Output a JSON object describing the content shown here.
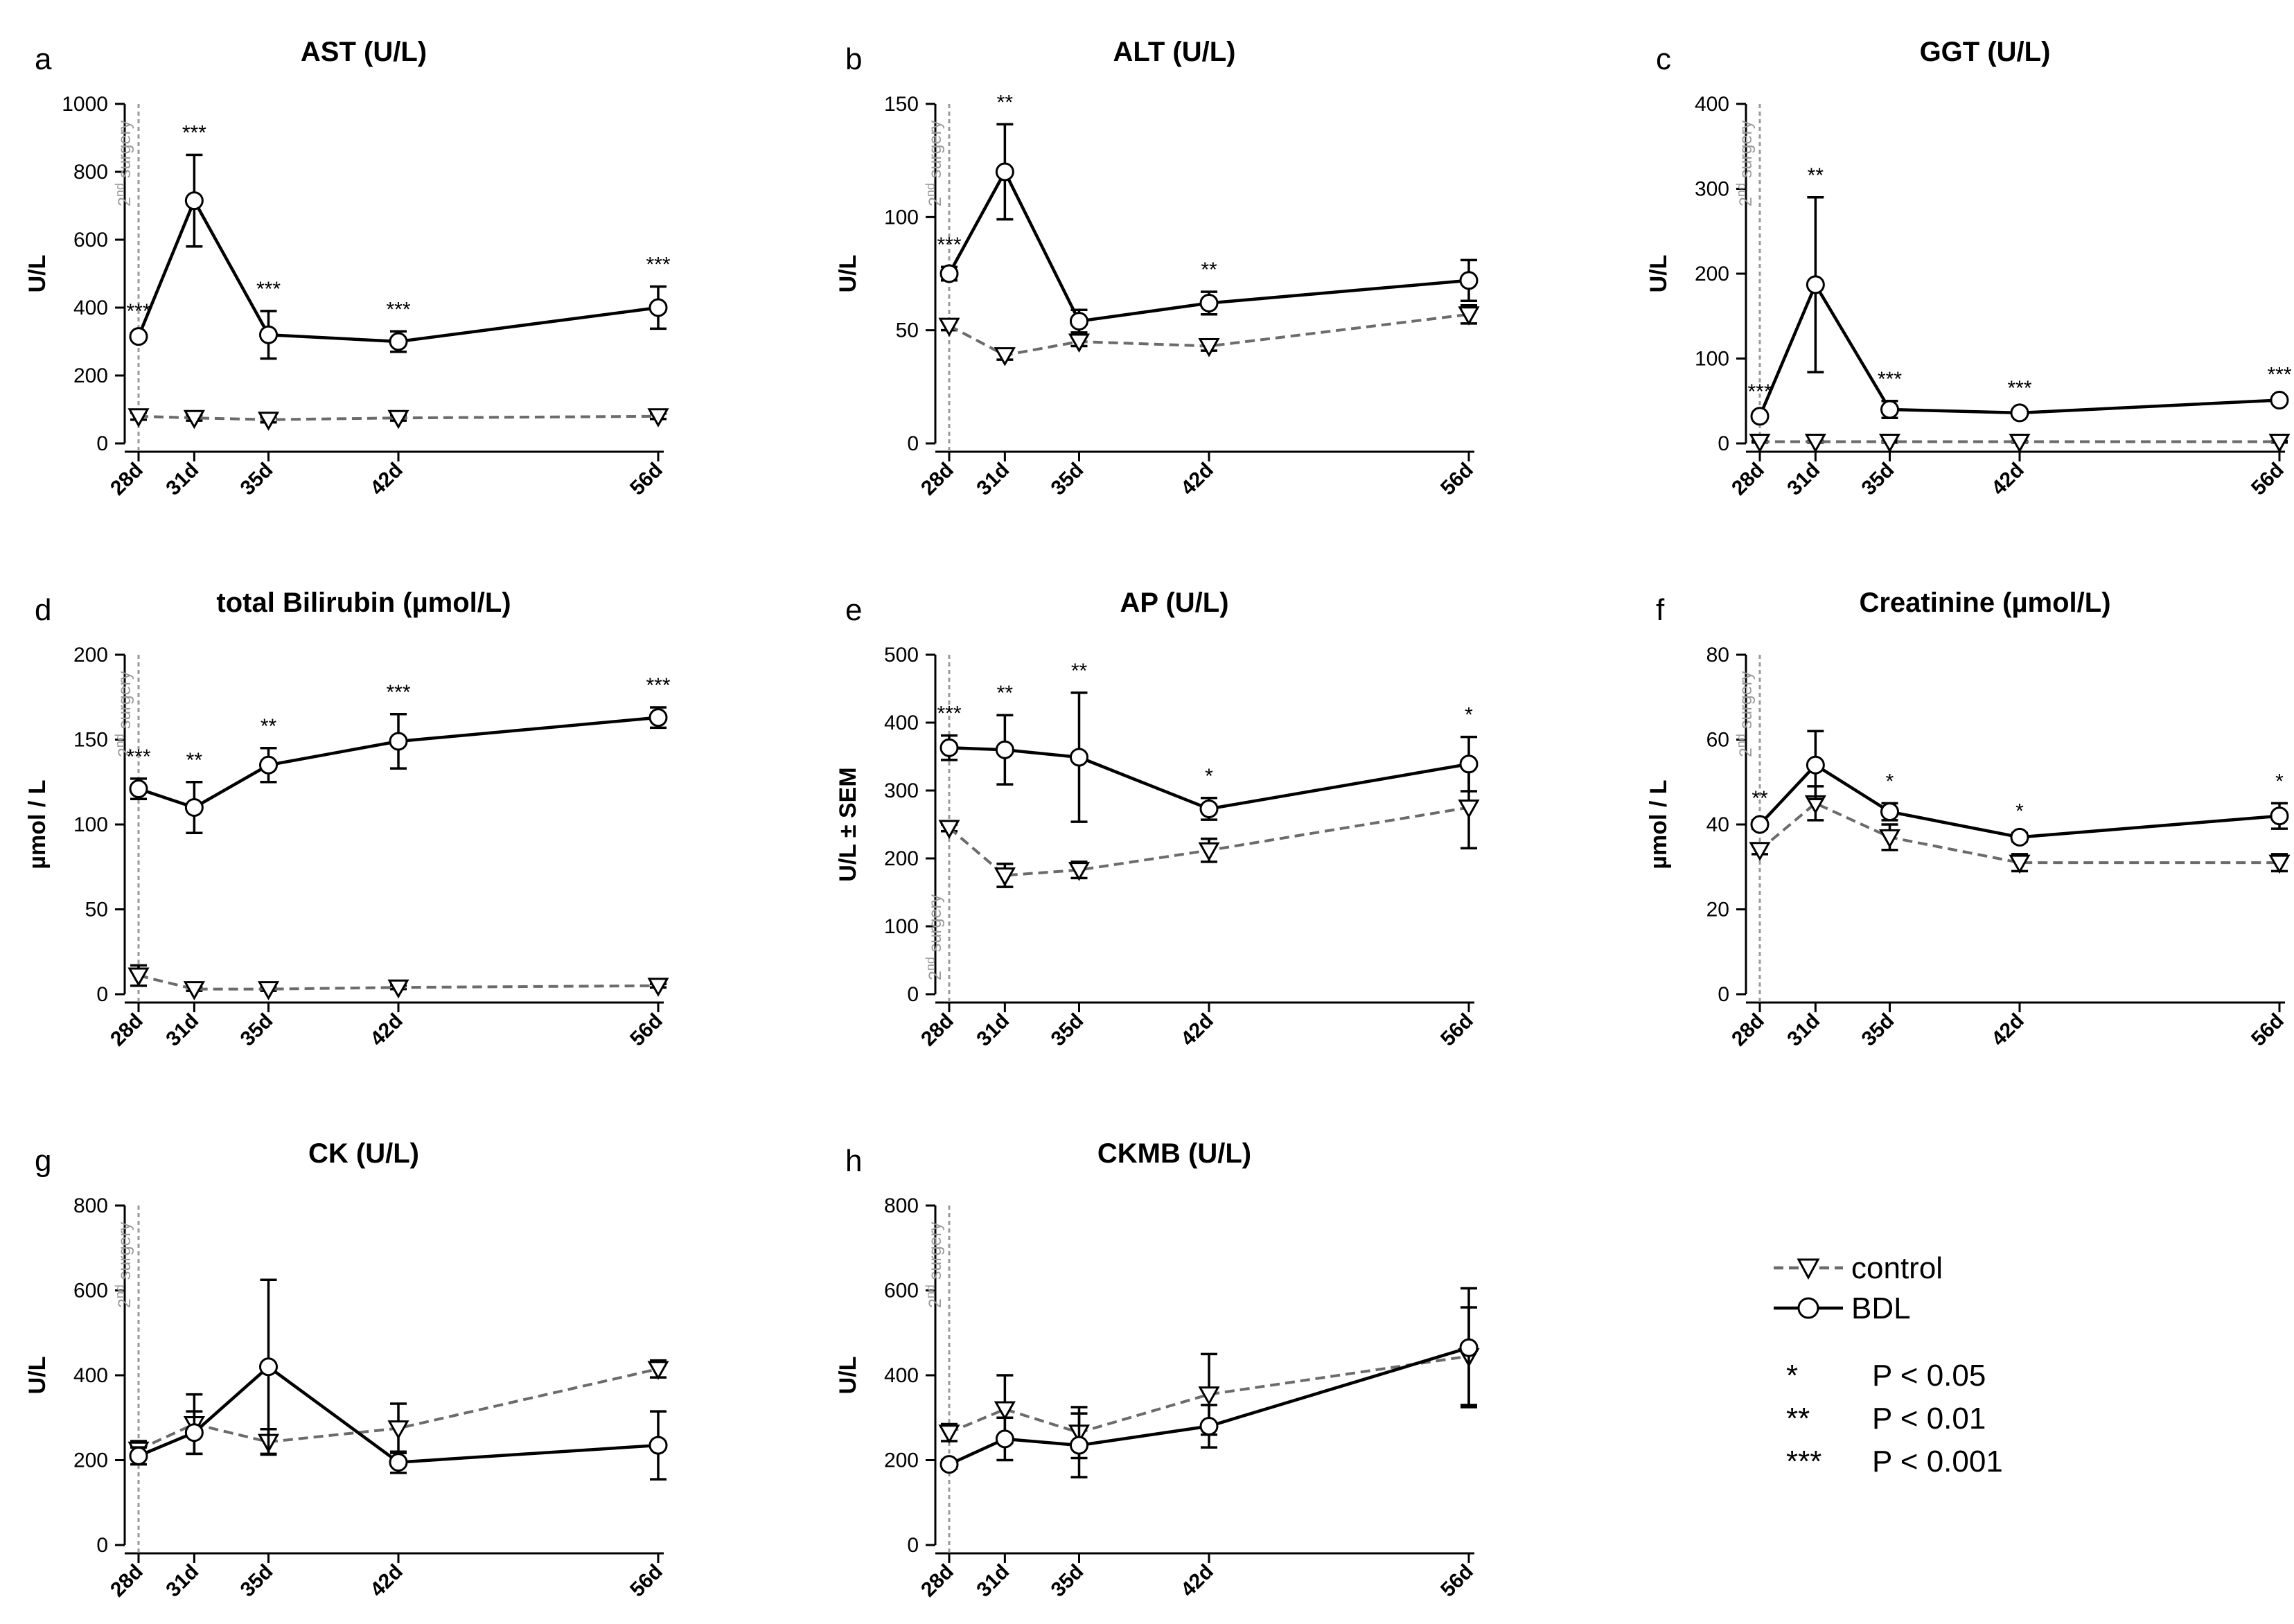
{
  "x_labels": [
    "28d",
    "31d",
    "35d",
    "42d",
    "56d"
  ],
  "surgery_label": {
    "base": "2",
    "sup": "nd",
    "rest": " surgery"
  },
  "legend": {
    "control": "control",
    "bdl": "BDL",
    "sig": [
      {
        "symbol": "*",
        "label": "P < 0.05"
      },
      {
        "symbol": "**",
        "label": "P < 0.01"
      },
      {
        "symbol": "***",
        "label": "P < 0.001"
      }
    ]
  },
  "chart_data": [
    {
      "letter": "a",
      "title": "AST (U/L)",
      "ylabel": "U/L",
      "type": "line",
      "x": [
        28,
        31,
        35,
        42,
        56
      ],
      "ylim": [
        0,
        1000
      ],
      "yticks": [
        0,
        200,
        400,
        600,
        800,
        1000
      ],
      "series": [
        {
          "name": "control",
          "values": [
            80,
            75,
            70,
            75,
            80
          ],
          "sem": [
            10,
            8,
            8,
            8,
            8
          ]
        },
        {
          "name": "BDL",
          "values": [
            315,
            715,
            320,
            300,
            400
          ],
          "sem": [
            10,
            135,
            70,
            30,
            62
          ]
        }
      ],
      "sig": [
        "***",
        "***",
        "***",
        "***",
        "***"
      ]
    },
    {
      "letter": "b",
      "title": "ALT (U/L)",
      "ylabel": "U/L",
      "type": "line",
      "x": [
        28,
        31,
        35,
        42,
        56
      ],
      "ylim": [
        0,
        150
      ],
      "yticks": [
        0,
        50,
        100,
        150
      ],
      "series": [
        {
          "name": "control",
          "values": [
            52,
            39,
            45,
            43,
            57
          ],
          "sem": [
            2,
            2,
            2,
            2,
            4
          ]
        },
        {
          "name": "BDL",
          "values": [
            75,
            120,
            54,
            62,
            72
          ],
          "sem": [
            3,
            21,
            5,
            5,
            9
          ]
        }
      ],
      "sig": [
        "***",
        "**",
        "",
        "**",
        ""
      ]
    },
    {
      "letter": "c",
      "title": "GGT (U/L)",
      "ylabel": "U/L",
      "type": "line",
      "x": [
        28,
        31,
        35,
        42,
        56
      ],
      "ylim": [
        0,
        400
      ],
      "yticks": [
        0,
        100,
        200,
        300,
        400
      ],
      "series": [
        {
          "name": "control",
          "values": [
            2,
            2,
            2,
            2,
            2
          ],
          "sem": [
            1,
            1,
            1,
            1,
            1
          ]
        },
        {
          "name": "BDL",
          "values": [
            32,
            187,
            40,
            36,
            51
          ],
          "sem": [
            3,
            103,
            10,
            3,
            4
          ]
        }
      ],
      "sig": [
        "***",
        "**",
        "***",
        "***",
        "***"
      ]
    },
    {
      "letter": "d",
      "title": "total Bilirubin (µmol/L)",
      "ylabel": "µmol / L",
      "type": "line",
      "x": [
        28,
        31,
        35,
        42,
        56
      ],
      "ylim": [
        0,
        200
      ],
      "yticks": [
        0,
        50,
        100,
        150,
        200
      ],
      "series": [
        {
          "name": "control",
          "values": [
            11,
            3,
            3,
            4,
            5
          ],
          "sem": [
            6,
            1,
            1,
            1,
            1
          ]
        },
        {
          "name": "BDL",
          "values": [
            121,
            110,
            135,
            149,
            163
          ],
          "sem": [
            6,
            15,
            10,
            16,
            6
          ]
        }
      ],
      "sig": [
        "***",
        "**",
        "**",
        "***",
        "***"
      ]
    },
    {
      "letter": "e",
      "title": "AP (U/L)",
      "ylabel": "U/L ± SEM",
      "type": "line",
      "x": [
        28,
        31,
        35,
        42,
        56
      ],
      "ylim": [
        0,
        500
      ],
      "yticks": [
        0,
        100,
        200,
        300,
        400,
        500
      ],
      "series": [
        {
          "name": "control",
          "values": [
            245,
            175,
            183,
            212,
            275
          ],
          "sem": [
            5,
            17,
            12,
            17,
            60
          ]
        },
        {
          "name": "BDL",
          "values": [
            363,
            360,
            349,
            273,
            339
          ],
          "sem": [
            18,
            51,
            95,
            16,
            40
          ]
        }
      ],
      "sig": [
        "***",
        "**",
        "**",
        "*",
        "*"
      ]
    },
    {
      "letter": "f",
      "title": "Creatinine (µmol/L)",
      "ylabel": "µmol / L",
      "type": "line",
      "x": [
        28,
        31,
        35,
        42,
        56
      ],
      "ylim": [
        0,
        80
      ],
      "yticks": [
        0,
        20,
        40,
        60,
        80
      ],
      "series": [
        {
          "name": "control",
          "values": [
            34,
            45,
            37,
            31,
            31
          ],
          "sem": [
            1,
            4,
            3,
            2,
            2
          ]
        },
        {
          "name": "BDL",
          "values": [
            40,
            54,
            43,
            37,
            42
          ],
          "sem": [
            1,
            8,
            2,
            1,
            3
          ]
        }
      ],
      "sig": [
        "**",
        "",
        "*",
        "*",
        "*"
      ]
    },
    {
      "letter": "g",
      "title": "CK (U/L)",
      "ylabel": "U/L",
      "type": "line",
      "x": [
        28,
        31,
        35,
        42,
        56
      ],
      "ylim": [
        0,
        800
      ],
      "yticks": [
        0,
        200,
        400,
        600,
        800
      ],
      "series": [
        {
          "name": "control",
          "values": [
            225,
            285,
            243,
            275,
            415
          ],
          "sem": [
            20,
            70,
            30,
            58,
            20
          ]
        },
        {
          "name": "BDL",
          "values": [
            210,
            265,
            420,
            195,
            235
          ],
          "sem": [
            20,
            50,
            205,
            25,
            80
          ]
        }
      ],
      "sig": [
        "",
        "",
        "",
        "",
        ""
      ]
    },
    {
      "letter": "h",
      "title": "CKMB (U/L)",
      "ylabel": "U/L",
      "type": "line",
      "x": [
        28,
        31,
        35,
        42,
        56
      ],
      "ylim": [
        0,
        800
      ],
      "yticks": [
        0,
        200,
        400,
        600,
        800
      ],
      "series": [
        {
          "name": "control",
          "values": [
            265,
            320,
            265,
            355,
            445
          ],
          "sem": [
            20,
            80,
            60,
            95,
            115
          ]
        },
        {
          "name": "BDL",
          "values": [
            190,
            250,
            235,
            280,
            465
          ],
          "sem": [
            10,
            50,
            75,
            50,
            140
          ]
        }
      ],
      "sig": [
        "",
        "",
        "",
        "",
        ""
      ]
    }
  ]
}
